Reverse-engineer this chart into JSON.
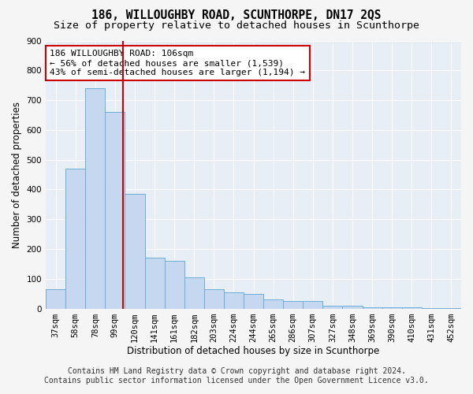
{
  "title": "186, WILLOUGHBY ROAD, SCUNTHORPE, DN17 2QS",
  "subtitle": "Size of property relative to detached houses in Scunthorpe",
  "xlabel": "Distribution of detached houses by size in Scunthorpe",
  "ylabel": "Number of detached properties",
  "categories": [
    "37sqm",
    "58sqm",
    "78sqm",
    "99sqm",
    "120sqm",
    "141sqm",
    "161sqm",
    "182sqm",
    "203sqm",
    "224sqm",
    "244sqm",
    "265sqm",
    "286sqm",
    "307sqm",
    "327sqm",
    "348sqm",
    "369sqm",
    "390sqm",
    "410sqm",
    "431sqm",
    "452sqm"
  ],
  "values": [
    65,
    470,
    740,
    660,
    385,
    170,
    160,
    105,
    65,
    55,
    50,
    30,
    25,
    25,
    10,
    10,
    5,
    5,
    5,
    2,
    2
  ],
  "bar_color": "#c5d8f0",
  "bar_edge_color": "#6aaed6",
  "subject_line_color": "#cc0000",
  "annotation_text": "186 WILLOUGHBY ROAD: 106sqm\n← 56% of detached houses are smaller (1,539)\n43% of semi-detached houses are larger (1,194) →",
  "annotation_box_color": "#cc0000",
  "ylim": [
    0,
    900
  ],
  "yticks": [
    0,
    100,
    200,
    300,
    400,
    500,
    600,
    700,
    800,
    900
  ],
  "footer_line1": "Contains HM Land Registry data © Crown copyright and database right 2024.",
  "footer_line2": "Contains public sector information licensed under the Open Government Licence v3.0.",
  "bg_color": "#e8eef6",
  "grid_color": "#ffffff",
  "fig_bg_color": "#f5f5f5",
  "title_fontsize": 10.5,
  "subtitle_fontsize": 9.5,
  "axis_label_fontsize": 8.5,
  "tick_fontsize": 7.5,
  "annotation_fontsize": 8,
  "footer_fontsize": 7
}
